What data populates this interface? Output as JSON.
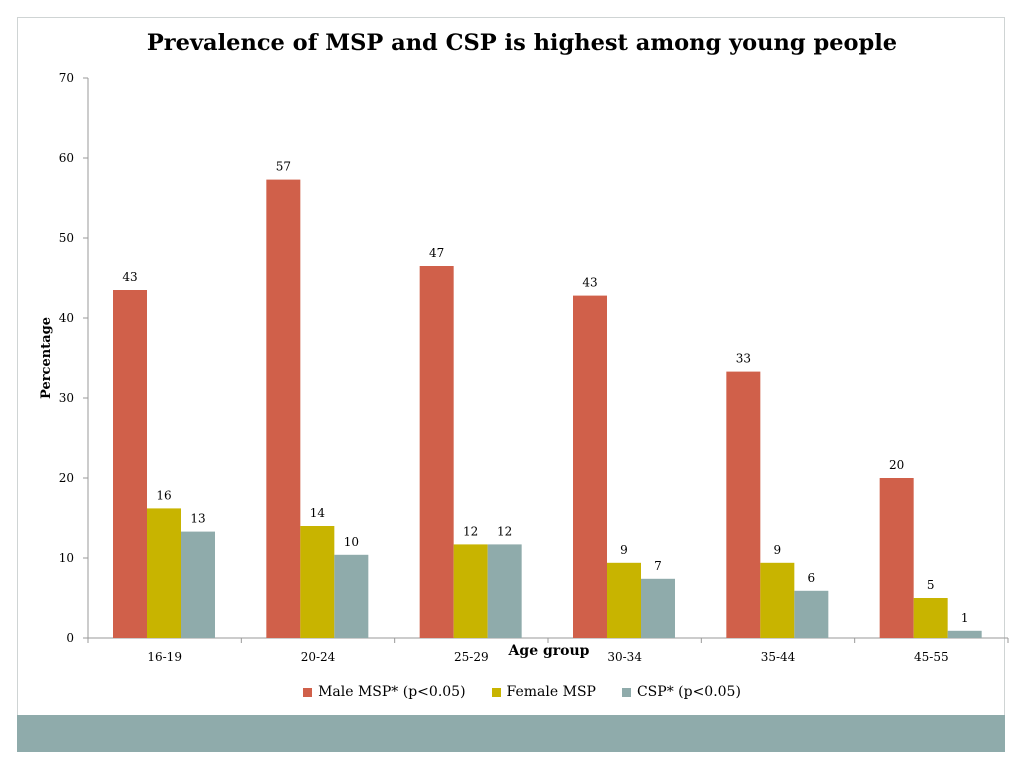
{
  "chart_data": {
    "type": "bar",
    "title": "Prevalence of MSP and CSP is highest among young people",
    "xlabel": "Age group",
    "ylabel": "Percentage",
    "ylim": [
      0,
      70
    ],
    "yticks": [
      0,
      10,
      20,
      30,
      40,
      50,
      60,
      70
    ],
    "grid": false,
    "legend_position": "bottom",
    "categories": [
      "16-19",
      "20-24",
      "25-29",
      "30-34",
      "35-44",
      "45-55"
    ],
    "series": [
      {
        "name": "Male MSP* (p<0.05)",
        "color": "#d0604a",
        "values": [
          43.5,
          57.3,
          46.5,
          42.8,
          33.3,
          20
        ],
        "labels": [
          "43",
          "57",
          "47",
          "43",
          "33",
          "20"
        ]
      },
      {
        "name": "Female MSP",
        "color": "#c8b400",
        "values": [
          16.2,
          14,
          11.7,
          9.4,
          9.4,
          5
        ],
        "labels": [
          "16",
          "14",
          "12",
          "9",
          "9",
          "5"
        ]
      },
      {
        "name": "CSP* (p<0.05)",
        "color": "#8fabab",
        "values": [
          13.3,
          10.4,
          11.7,
          7.4,
          5.9,
          0.9
        ],
        "labels": [
          "13",
          "10",
          "12",
          "7",
          "6",
          "1"
        ]
      }
    ]
  }
}
